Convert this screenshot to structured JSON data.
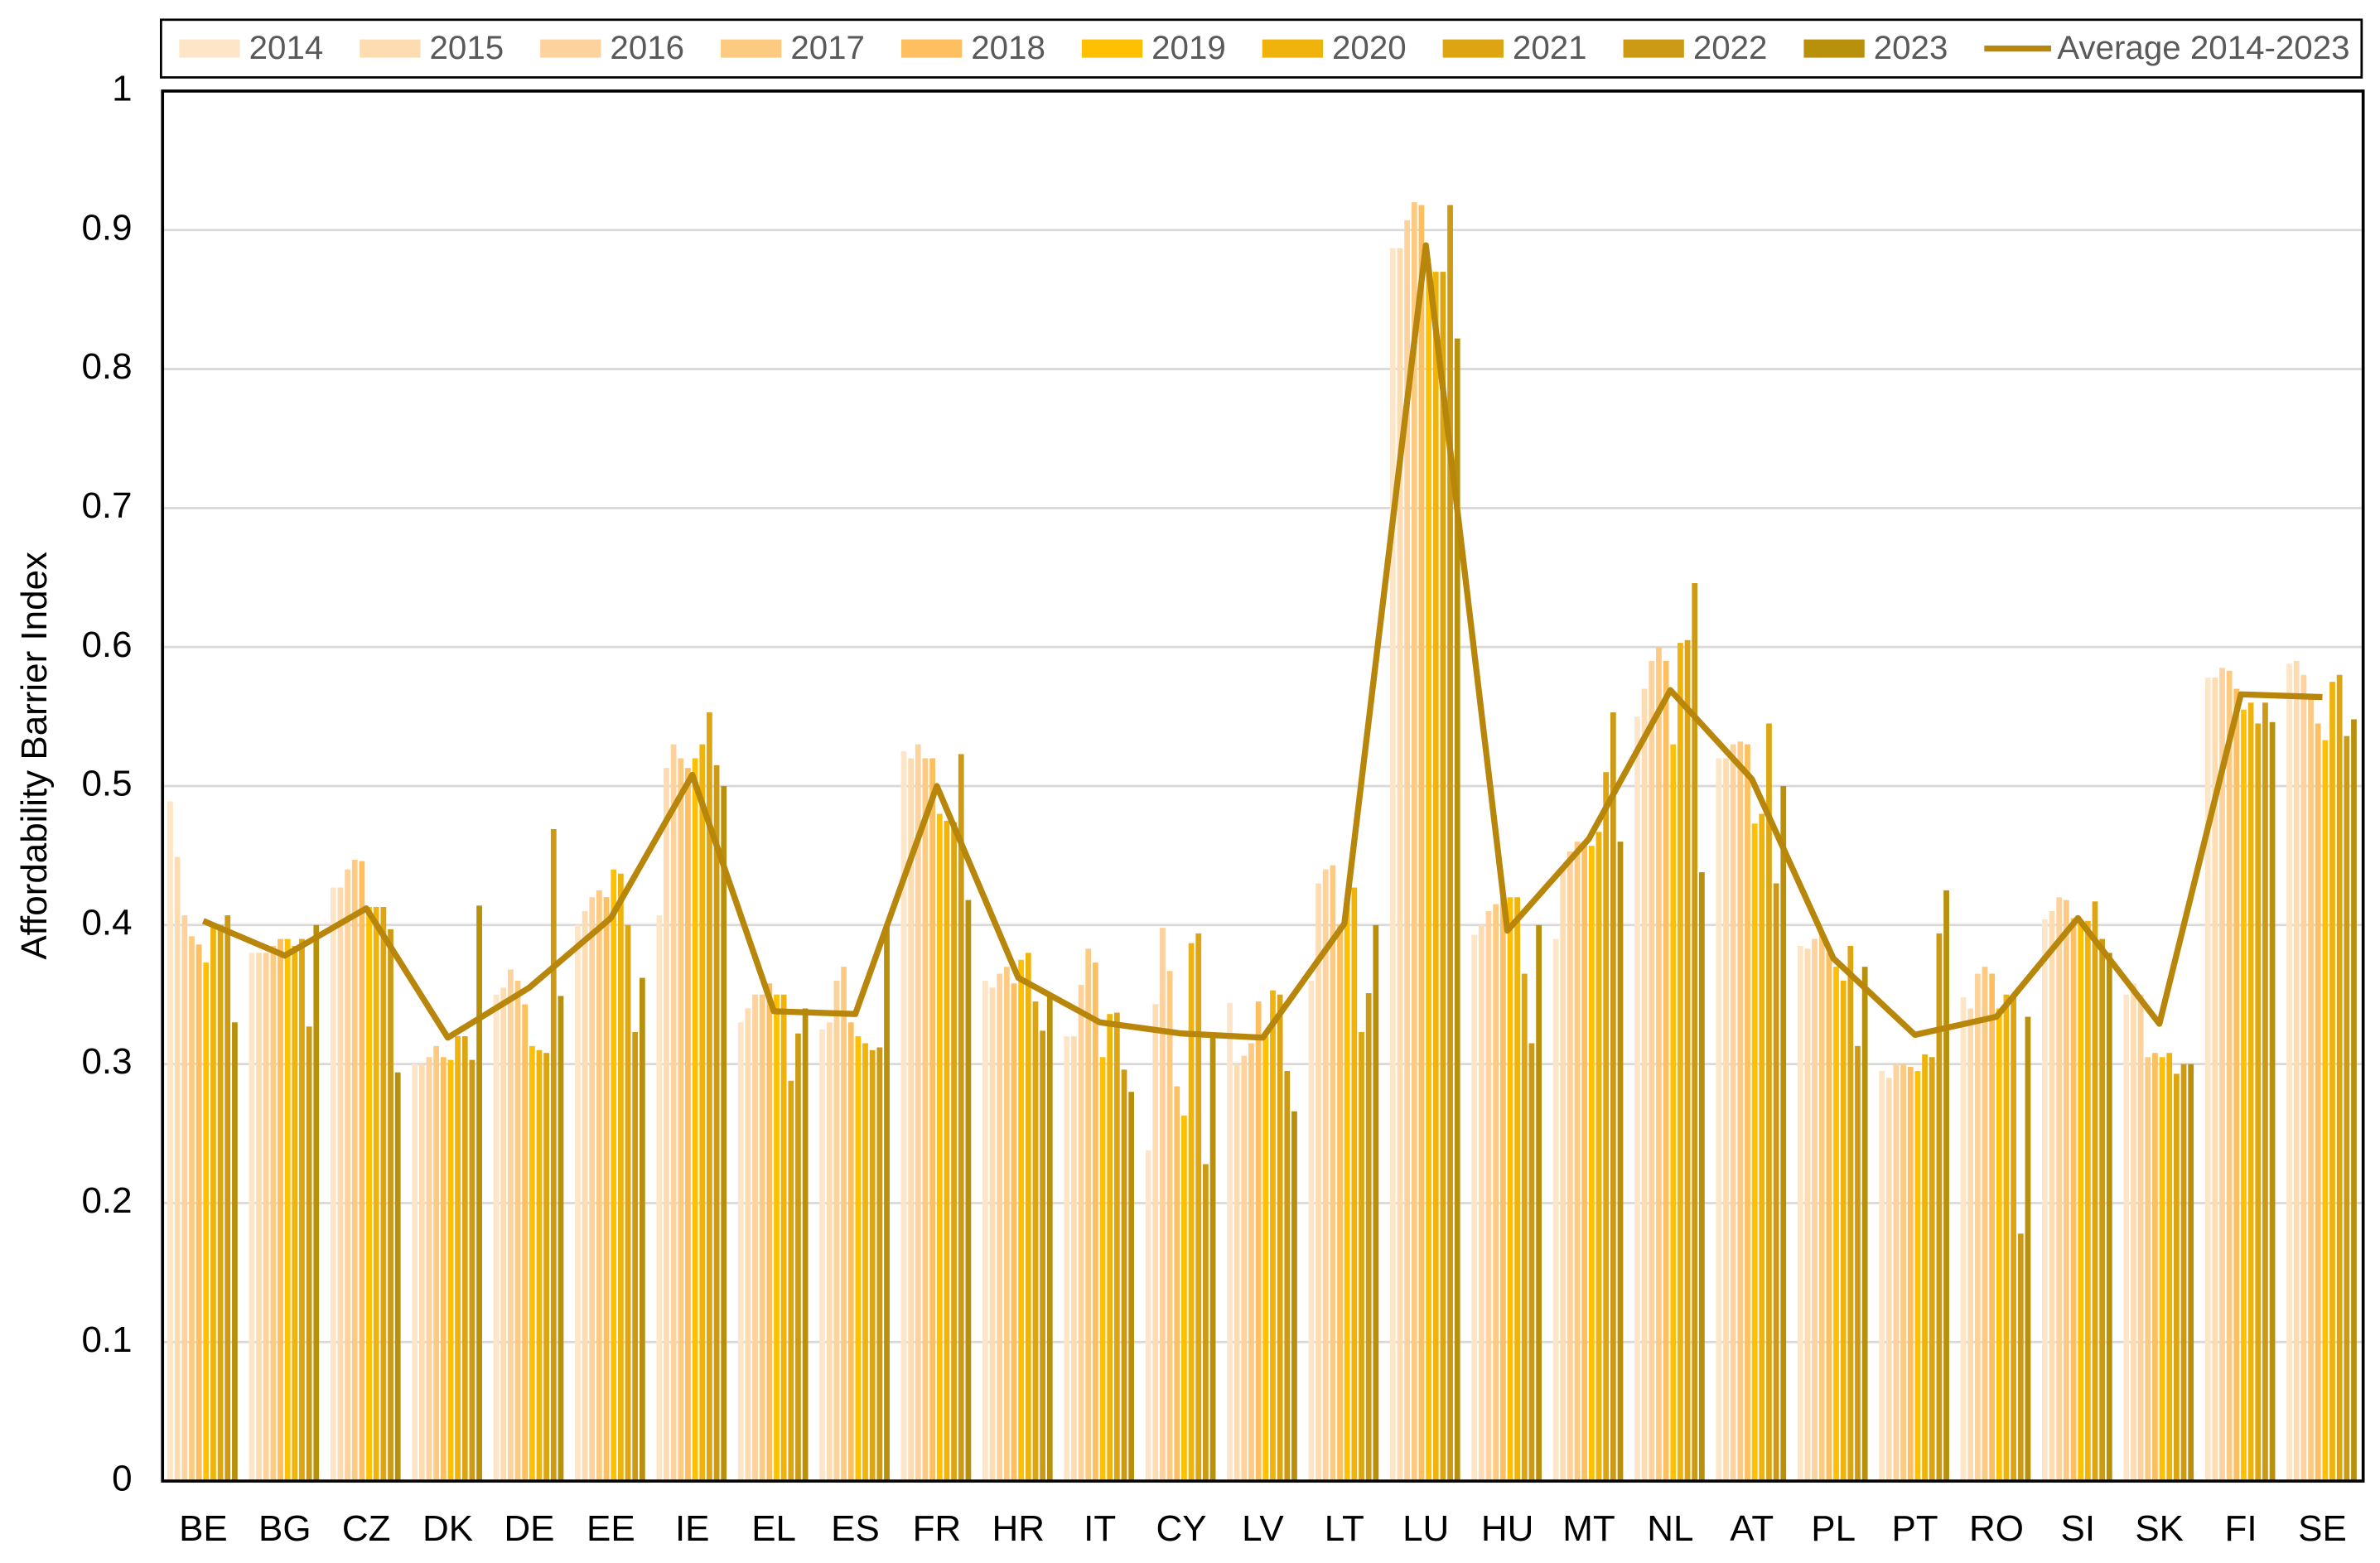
{
  "chart_data": {
    "type": "bar",
    "y_label": "Affordability Barrier Index",
    "categories": [
      "BE",
      "BG",
      "CZ",
      "DK",
      "DE",
      "EE",
      "IE",
      "EL",
      "ES",
      "FR",
      "HR",
      "IT",
      "CY",
      "LV",
      "LT",
      "LU",
      "HU",
      "MT",
      "NL",
      "AT",
      "PL",
      "PT",
      "RO",
      "SI",
      "SK",
      "FI",
      "SE"
    ],
    "ylim": [
      0,
      1
    ],
    "yticks": [
      0,
      0.1,
      0.2,
      0.3,
      0.4,
      0.5,
      0.6,
      0.7,
      0.8,
      0.9,
      1
    ],
    "grid": true,
    "legend": "top",
    "series": [
      {
        "name": "2014",
        "color": "#fde6c8",
        "values": [
          0.489,
          0.38,
          0.427,
          0.3,
          0.35,
          0.4,
          0.407,
          0.33,
          0.325,
          0.525,
          0.36,
          0.32,
          0.238,
          0.344,
          0.36,
          0.887,
          0.393,
          0.39,
          0.55,
          0.52,
          0.385,
          0.295,
          0.348,
          0.404,
          0.35,
          0.578,
          0.588
        ]
      },
      {
        "name": "2015",
        "color": "#fddcb2",
        "values": [
          0.449,
          0.38,
          0.427,
          0.3,
          0.355,
          0.41,
          0.513,
          0.34,
          0.33,
          0.52,
          0.355,
          0.32,
          0.343,
          0.3,
          0.43,
          0.887,
          0.4,
          0.44,
          0.57,
          0.52,
          0.383,
          0.29,
          0.34,
          0.41,
          0.358,
          0.578,
          0.59
        ]
      },
      {
        "name": "2016",
        "color": "#fdd29d",
        "values": [
          0.407,
          0.38,
          0.44,
          0.305,
          0.368,
          0.42,
          0.53,
          0.35,
          0.36,
          0.53,
          0.365,
          0.357,
          0.398,
          0.306,
          0.44,
          0.907,
          0.41,
          0.453,
          0.59,
          0.53,
          0.39,
          0.3,
          0.365,
          0.42,
          0.35,
          0.585,
          0.58
        ]
      },
      {
        "name": "2017",
        "color": "#fdca82",
        "values": [
          0.392,
          0.385,
          0.447,
          0.313,
          0.36,
          0.425,
          0.52,
          0.35,
          0.37,
          0.52,
          0.37,
          0.383,
          0.367,
          0.315,
          0.443,
          0.92,
          0.415,
          0.46,
          0.6,
          0.532,
          0.395,
          0.3,
          0.37,
          0.418,
          0.305,
          0.583,
          0.563
        ]
      },
      {
        "name": "2018",
        "color": "#fdbf5f",
        "values": [
          0.386,
          0.39,
          0.446,
          0.305,
          0.343,
          0.42,
          0.513,
          0.358,
          0.33,
          0.52,
          0.358,
          0.373,
          0.284,
          0.345,
          0.4,
          0.918,
          0.42,
          0.457,
          0.59,
          0.53,
          0.38,
          0.298,
          0.365,
          0.405,
          0.308,
          0.57,
          0.545
        ]
      },
      {
        "name": "2019",
        "color": "#fec000",
        "values": [
          0.373,
          0.39,
          0.413,
          0.303,
          0.313,
          0.44,
          0.52,
          0.35,
          0.32,
          0.48,
          0.375,
          0.305,
          0.263,
          0.32,
          0.42,
          0.87,
          0.42,
          0.457,
          0.53,
          0.473,
          0.37,
          0.295,
          0.34,
          0.403,
          0.305,
          0.555,
          0.533
        ]
      },
      {
        "name": "2020",
        "color": "#efb30c",
        "values": [
          0.4,
          0.385,
          0.413,
          0.32,
          0.31,
          0.437,
          0.53,
          0.35,
          0.315,
          0.475,
          0.38,
          0.336,
          0.387,
          0.353,
          0.427,
          0.87,
          0.42,
          0.467,
          0.603,
          0.48,
          0.36,
          0.307,
          0.35,
          0.403,
          0.308,
          0.56,
          0.575
        ]
      },
      {
        "name": "2021",
        "color": "#dda512",
        "values": [
          0.4,
          0.39,
          0.413,
          0.32,
          0.308,
          0.4,
          0.553,
          0.288,
          0.31,
          0.474,
          0.345,
          0.337,
          0.394,
          0.35,
          0.323,
          0.87,
          0.365,
          0.51,
          0.605,
          0.545,
          0.385,
          0.305,
          0.35,
          0.417,
          0.293,
          0.545,
          0.58
        ]
      },
      {
        "name": "2022",
        "color": "#cc9a14",
        "values": [
          0.407,
          0.327,
          0.397,
          0.303,
          0.469,
          0.323,
          0.515,
          0.322,
          0.312,
          0.523,
          0.324,
          0.296,
          0.228,
          0.295,
          0.351,
          0.918,
          0.315,
          0.553,
          0.646,
          0.43,
          0.313,
          0.394,
          0.178,
          0.39,
          0.3,
          0.56,
          0.536
        ]
      },
      {
        "name": "2023",
        "color": "#b8900c",
        "values": [
          0.33,
          0.4,
          0.294,
          0.414,
          0.349,
          0.362,
          0.5,
          0.34,
          0.4,
          0.418,
          0.35,
          0.28,
          0.32,
          0.266,
          0.4,
          0.822,
          0.4,
          0.46,
          0.438,
          0.5,
          0.37,
          0.425,
          0.334,
          0.38,
          0.3,
          0.546,
          0.548
        ]
      },
      {
        "name": "Average 2014-2023",
        "color": "#b8860b",
        "line": true,
        "values": [
          0.403,
          0.378,
          0.412,
          0.319,
          0.355,
          0.405,
          0.508,
          0.338,
          0.336,
          0.5,
          0.362,
          0.33,
          0.322,
          0.319,
          0.401,
          0.889,
          0.396,
          0.462,
          0.569,
          0.505,
          0.376,
          0.321,
          0.334,
          0.405,
          0.329,
          0.566,
          0.564
        ]
      }
    ]
  }
}
